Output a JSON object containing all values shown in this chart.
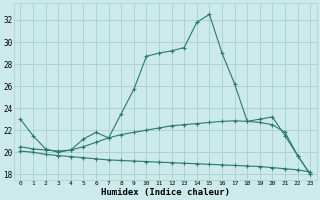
{
  "xlabel": "Humidex (Indice chaleur)",
  "x_values": [
    0,
    1,
    2,
    3,
    4,
    5,
    6,
    7,
    8,
    9,
    10,
    11,
    12,
    13,
    14,
    15,
    16,
    17,
    18,
    19,
    20,
    21,
    22,
    23
  ],
  "line1_y": [
    23.0,
    21.5,
    20.3,
    20.0,
    20.2,
    21.2,
    21.8,
    21.3,
    23.5,
    25.7,
    28.7,
    29.0,
    29.2,
    29.5,
    31.8,
    32.5,
    29.0,
    26.2,
    22.8,
    23.0,
    23.2,
    21.5,
    19.7,
    18.0
  ],
  "line2_y": [
    20.5,
    20.3,
    20.2,
    20.1,
    20.2,
    20.5,
    20.9,
    21.3,
    21.6,
    21.8,
    22.0,
    22.2,
    22.4,
    22.5,
    22.6,
    22.7,
    22.8,
    22.85,
    22.8,
    22.7,
    22.5,
    21.8,
    19.7,
    18.0
  ],
  "line3_y": [
    20.1,
    20.0,
    19.8,
    19.7,
    19.6,
    19.5,
    19.4,
    19.3,
    19.25,
    19.2,
    19.15,
    19.1,
    19.05,
    19.0,
    18.95,
    18.9,
    18.85,
    18.8,
    18.75,
    18.7,
    18.6,
    18.5,
    18.4,
    18.2
  ],
  "line_color": "#2a7a6a",
  "bg_color": "#cceaea",
  "grid_color": "#aacece",
  "ylim": [
    17.5,
    33.5
  ],
  "yticks": [
    18,
    20,
    22,
    24,
    26,
    28,
    30,
    32
  ],
  "xticks": [
    0,
    1,
    2,
    3,
    4,
    5,
    6,
    7,
    8,
    9,
    10,
    11,
    12,
    13,
    14,
    15,
    16,
    17,
    18,
    19,
    20,
    21,
    22,
    23
  ]
}
